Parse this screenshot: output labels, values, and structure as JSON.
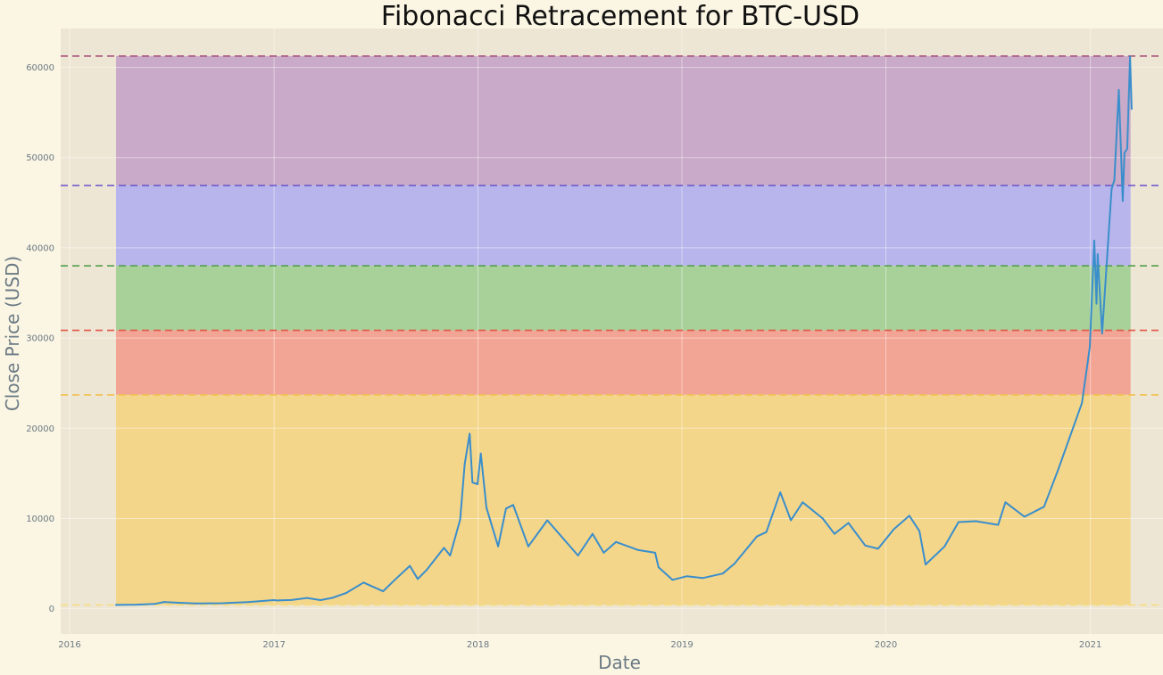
{
  "chart_data": {
    "type": "line",
    "title": "Fibonacci Retracement for BTC-USD",
    "xlabel": "Date",
    "ylabel": "Close Price (USD)",
    "x_ticks": [
      "2016",
      "2017",
      "2018",
      "2019",
      "2020",
      "2021"
    ],
    "y_ticks": [
      "0",
      "10000",
      "20000",
      "30000",
      "40000",
      "50000",
      "60000"
    ],
    "xlim": [
      "2015-12-16",
      "2021-05-11"
    ],
    "ylim": [
      -2800,
      64300
    ],
    "grid": true,
    "fib_levels": [
      {
        "value": 61250,
        "color": "#a9557e"
      },
      {
        "value": 46900,
        "color": "#6a55cc"
      },
      {
        "value": 38000,
        "color": "#55a04f"
      },
      {
        "value": 30850,
        "color": "#e05a4c"
      },
      {
        "value": 23700,
        "color": "#f0c050"
      },
      {
        "value": 420,
        "color": "#f3dc7c"
      }
    ],
    "fib_bands": [
      {
        "from": 46900,
        "to": 61250,
        "color": "#c9aac8"
      },
      {
        "from": 38000,
        "to": 46900,
        "color": "#b7b5ec"
      },
      {
        "from": 30850,
        "to": 38000,
        "color": "#a8d19a"
      },
      {
        "from": 23700,
        "to": 30850,
        "color": "#f3a595"
      },
      {
        "from": 420,
        "to": 23700,
        "color": "#f4d68a"
      }
    ],
    "band_range": [
      "2016-03-24",
      "2021-03-14"
    ],
    "series": [
      {
        "color": "#3a8ecc",
        "points": [
          [
            "2016-03-24",
            420
          ],
          [
            "2016-05-01",
            450
          ],
          [
            "2016-06-01",
            530
          ],
          [
            "2016-06-18",
            750
          ],
          [
            "2016-07-15",
            660
          ],
          [
            "2016-08-15",
            580
          ],
          [
            "2016-10-01",
            610
          ],
          [
            "2016-11-15",
            740
          ],
          [
            "2016-12-31",
            960
          ],
          [
            "2017-01-06",
            920
          ],
          [
            "2017-02-01",
            970
          ],
          [
            "2017-03-01",
            1190
          ],
          [
            "2017-03-25",
            960
          ],
          [
            "2017-04-15",
            1200
          ],
          [
            "2017-05-10",
            1750
          ],
          [
            "2017-06-10",
            2900
          ],
          [
            "2017-07-15",
            1930
          ],
          [
            "2017-08-05",
            3200
          ],
          [
            "2017-09-01",
            4750
          ],
          [
            "2017-09-15",
            3300
          ],
          [
            "2017-10-01",
            4300
          ],
          [
            "2017-11-01",
            6750
          ],
          [
            "2017-11-12",
            5900
          ],
          [
            "2017-11-30",
            9900
          ],
          [
            "2017-12-08",
            16000
          ],
          [
            "2017-12-17",
            19400
          ],
          [
            "2017-12-22",
            14000
          ],
          [
            "2017-12-31",
            13800
          ],
          [
            "2018-01-06",
            17200
          ],
          [
            "2018-01-16",
            11200
          ],
          [
            "2018-02-06",
            6900
          ],
          [
            "2018-02-20",
            11100
          ],
          [
            "2018-03-05",
            11500
          ],
          [
            "2018-04-01",
            6900
          ],
          [
            "2018-05-05",
            9800
          ],
          [
            "2018-06-29",
            5900
          ],
          [
            "2018-07-25",
            8300
          ],
          [
            "2018-08-14",
            6200
          ],
          [
            "2018-09-05",
            7400
          ],
          [
            "2018-10-15",
            6500
          ],
          [
            "2018-11-14",
            6200
          ],
          [
            "2018-11-20",
            4600
          ],
          [
            "2018-12-15",
            3200
          ],
          [
            "2019-01-10",
            3600
          ],
          [
            "2019-02-07",
            3400
          ],
          [
            "2019-03-15",
            3900
          ],
          [
            "2019-04-05",
            5000
          ],
          [
            "2019-05-15",
            8000
          ],
          [
            "2019-06-01",
            8500
          ],
          [
            "2019-06-26",
            12900
          ],
          [
            "2019-07-15",
            9800
          ],
          [
            "2019-08-05",
            11800
          ],
          [
            "2019-09-10",
            10000
          ],
          [
            "2019-10-01",
            8300
          ],
          [
            "2019-10-26",
            9500
          ],
          [
            "2019-11-25",
            7000
          ],
          [
            "2019-12-18",
            6650
          ],
          [
            "2020-01-15",
            8800
          ],
          [
            "2020-02-12",
            10300
          ],
          [
            "2020-03-01",
            8600
          ],
          [
            "2020-03-12",
            4900
          ],
          [
            "2020-04-15",
            6900
          ],
          [
            "2020-05-10",
            9600
          ],
          [
            "2020-06-10",
            9700
          ],
          [
            "2020-07-20",
            9300
          ],
          [
            "2020-08-02",
            11800
          ],
          [
            "2020-09-05",
            10200
          ],
          [
            "2020-10-10",
            11300
          ],
          [
            "2020-11-05",
            15500
          ],
          [
            "2020-11-25",
            19000
          ],
          [
            "2020-12-17",
            22800
          ],
          [
            "2020-12-31",
            29000
          ],
          [
            "2021-01-08",
            40800
          ],
          [
            "2021-01-12",
            33800
          ],
          [
            "2021-01-14",
            39300
          ],
          [
            "2021-01-22",
            30500
          ],
          [
            "2021-02-08",
            46500
          ],
          [
            "2021-02-13",
            47500
          ],
          [
            "2021-02-21",
            57500
          ],
          [
            "2021-02-28",
            45200
          ],
          [
            "2021-03-03",
            50500
          ],
          [
            "2021-03-08",
            51000
          ],
          [
            "2021-03-13",
            61200
          ],
          [
            "2021-03-14",
            59200
          ],
          [
            "2021-03-16",
            55400
          ]
        ]
      }
    ]
  }
}
